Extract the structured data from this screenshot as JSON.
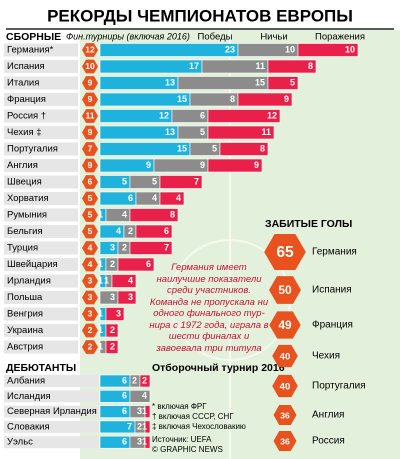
{
  "title": "РЕКОРДЫ ЧЕМПИОНАТОВ ЕВРОПЫ",
  "chart_data": [
    {
      "type": "bar",
      "stacked": true,
      "orientation": "horizontal",
      "category_label": "СБОРНЫЕ",
      "badge_label": "Фин.турниры (включая 2016)",
      "badge_color": "#e8521e",
      "categories": [
        "Германия*",
        "Испания",
        "Италия",
        "Франция",
        "Россия †",
        "Чехия ‡",
        "Португалия",
        "Англия",
        "Швеция",
        "Хорватия",
        "Румыния",
        "Бельгия",
        "Турция",
        "Швейцария",
        "Ирландия",
        "Польша",
        "Венгрия",
        "Украина",
        "Австрия"
      ],
      "badges": [
        12,
        10,
        9,
        9,
        11,
        9,
        7,
        9,
        6,
        5,
        5,
        5,
        4,
        4,
        3,
        3,
        3,
        2,
        2
      ],
      "series": [
        {
          "name": "Победы",
          "color": "#1eb2dc",
          "values": [
            23,
            17,
            13,
            15,
            12,
            13,
            15,
            9,
            5,
            6,
            1,
            4,
            3,
            1,
            1,
            0,
            1,
            1,
            0
          ]
        },
        {
          "name": "Ничьи",
          "color": "#8c8c8c",
          "values": [
            10,
            11,
            15,
            8,
            6,
            5,
            5,
            9,
            5,
            4,
            4,
            2,
            2,
            2,
            1,
            3,
            0,
            0,
            1
          ]
        },
        {
          "name": "Поражения",
          "color": "#e8204a",
          "values": [
            10,
            8,
            5,
            9,
            12,
            11,
            8,
            9,
            7,
            4,
            8,
            6,
            7,
            6,
            4,
            3,
            3,
            2,
            2
          ]
        }
      ]
    },
    {
      "type": "bar",
      "stacked": true,
      "orientation": "horizontal",
      "category_label": "ДЕБЮТАНТЫ",
      "subtitle": "Отборочный турнир 2016",
      "categories": [
        "Албания",
        "Исландия",
        "Северная Ирландия",
        "Словакия",
        "Уэльс"
      ],
      "series": [
        {
          "color": "#1eb2dc",
          "values": [
            6,
            6,
            6,
            7,
            6
          ]
        },
        {
          "color": "#8c8c8c",
          "values": [
            2,
            4,
            3,
            2,
            3
          ]
        },
        {
          "color": "#e8204a",
          "values": [
            2,
            0,
            1,
            1,
            1
          ]
        }
      ]
    },
    {
      "type": "hexagon",
      "title": "ЗАБИТЫЕ ГОЛЫ",
      "color": "#e8521e",
      "categories": [
        "Германия",
        "Испания",
        "Франция",
        "Чехия",
        "Португалия",
        "Англия",
        "Россия"
      ],
      "values": [
        65,
        50,
        49,
        40,
        40,
        36,
        36
      ]
    }
  ],
  "annotation": "Германия имеет наилучшие показатели среди участников. Команда не пропускала ни одного финального тур­нира с 1972 года, играла в шести финалах и завоевала три титула",
  "footnotes": [
    "* включая ФРГ",
    "† включая СССР, СНГ",
    "‡ включая Чехословакию"
  ],
  "source": "Источник: UEFA",
  "credit": "© GRAPHIC NEWS"
}
